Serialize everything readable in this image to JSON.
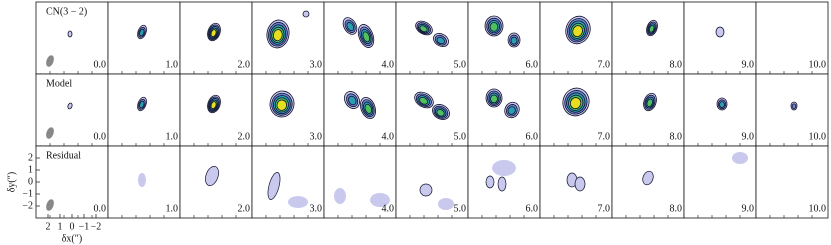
{
  "figure": {
    "rows": [
      "CN(3 − 2)",
      "Model",
      "Residual"
    ],
    "channels": [
      "0.0",
      "1.0",
      "2.0",
      "3.0",
      "4.0",
      "5.0",
      "6.0",
      "7.0",
      "8.0",
      "9.0",
      "10.0"
    ],
    "xlabel": "δx(″)",
    "ylabel": "δy(″)",
    "xlim": [
      3,
      -3
    ],
    "ylim": [
      -3,
      3
    ],
    "xticks": [
      2,
      1,
      0,
      {
        "value": -1,
        "label": "−1"
      },
      {
        "value": -2,
        "label": "−2"
      }
    ],
    "yticks": [
      2,
      1,
      0,
      {
        "value": -1,
        "label": "−1"
      },
      {
        "value": -2,
        "label": "−2"
      }
    ]
  }
}
